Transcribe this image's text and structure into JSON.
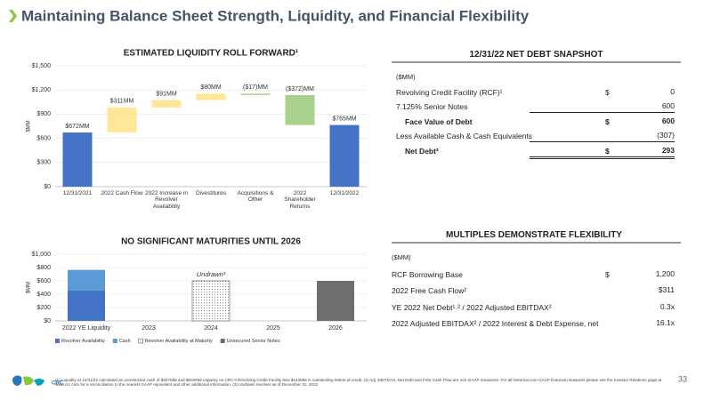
{
  "title": "Maintaining Balance Sheet Strength, Liquidity, and Financial Flexibility",
  "chart_data": [
    {
      "type": "waterfall",
      "title": "ESTIMATED LIQUIDITY ROLL FORWARD¹",
      "y_label": "$MM",
      "categories": [
        "12/31/2021",
        "2022 Cash Flow",
        "2022 Increase in Revolver Availability",
        "Divestitures",
        "Acquisitions & Other",
        "2022 Shareholder Returns",
        "12/31/2022"
      ],
      "measure": [
        "absolute",
        "relative",
        "relative",
        "relative",
        "relative",
        "relative",
        "absolute"
      ],
      "values": [
        672,
        311,
        91,
        80,
        -17,
        -372,
        765
      ],
      "value_labels": [
        "$672MM",
        "$311MM",
        "$91MM",
        "$80MM",
        "($17)MM",
        "($372)MM",
        "$765MM"
      ],
      "total_color": "#4472c4",
      "increase_color": "#ffe699",
      "decrease_color": "#a9d18e",
      "ylim": [
        0,
        1500
      ],
      "yticks": [
        {
          "value": 0,
          "label": "$0"
        },
        {
          "value": 300,
          "label": "$300"
        },
        {
          "value": 600,
          "label": "$600"
        },
        {
          "value": 900,
          "label": "$900"
        },
        {
          "value": 1200,
          "label": "$1,200"
        },
        {
          "value": 1500,
          "label": "$1,500"
        }
      ]
    },
    {
      "type": "stacked_bar",
      "title": "NO SIGNIFICANT MATURITIES UNTIL 2026",
      "y_label": "$MM",
      "categories": [
        "2022 YE Liquidity",
        "2023",
        "2024",
        "2025",
        "2026"
      ],
      "series": [
        {
          "name": "Revolver Availability",
          "color": "#4472c4",
          "values": [
            458,
            null,
            null,
            null,
            null
          ]
        },
        {
          "name": "Cash",
          "color": "#5b9bd5",
          "values": [
            307,
            null,
            null,
            null,
            null
          ]
        },
        {
          "name": "Revolver Availability at Maturity",
          "color": "#ffffff",
          "pattern": "dots",
          "values": [
            null,
            null,
            600,
            null,
            null
          ]
        },
        {
          "name": "Unsecured Senior Notes",
          "color": "#6e6e6e",
          "values": [
            null,
            null,
            null,
            null,
            600
          ]
        }
      ],
      "annotation": "Undrawn³",
      "ylim": [
        0,
        1000
      ],
      "yticks": [
        {
          "value": 0,
          "label": "$0"
        },
        {
          "value": 200,
          "label": "$200"
        },
        {
          "value": 400,
          "label": "$400"
        },
        {
          "value": 600,
          "label": "$600"
        },
        {
          "value": 800,
          "label": "$800"
        },
        {
          "value": 1000,
          "label": "$1,000"
        }
      ],
      "legend": "bottom"
    }
  ],
  "net_debt_table": {
    "title": "12/31/22 NET DEBT SNAPSHOT",
    "unit": "($MM)",
    "rows": [
      {
        "label": "Revolving Credit Facility (RCF)¹",
        "currency": "$",
        "value": "0"
      },
      {
        "label": "7.125% Senior Notes",
        "value": "600",
        "rule": "single"
      },
      {
        "label": "Face Value of Debt",
        "currency": "$",
        "value": "600",
        "bold": true
      },
      {
        "label": "Less Available Cash & Cash Equivalents",
        "value": "(307)",
        "rule": "single"
      },
      {
        "label": "Net Debt²",
        "currency": "$",
        "value": "293",
        "bold": true,
        "rule": "double"
      }
    ]
  },
  "multiples_table": {
    "title": "MULTIPLES DEMONSTRATE FLEXIBILITY",
    "unit": "($MM)",
    "rows": [
      {
        "label": "RCF Borrowing Base",
        "currency": "$",
        "value": "1,200"
      },
      {
        "label": "2022 Free Cash Flow²",
        "value": "$311"
      },
      {
        "label": "YE 2022 Net Debt¹˒² / 2022 Adjusted EBITDAX²",
        "value": "0.3x"
      },
      {
        "label": "2022 Adjusted EBITDAX² / 2022 Interest & Debt Expense, net",
        "value": "16.1x"
      }
    ]
  },
  "footnote": "(1) Liquidity at 12/31/22 calculated as unrestricted cash of $307MM and $602MM capacity on CRC's Revolving Credit Facility less $144MM in outstanding letters of credit. (2) Adj. EBITDAX, Net Debt and Free Cash Flow are non-GAAP measures. For all historical non-GAAP financial measures please see the Investor Relations page at www.crc.com for a reconciliation to the nearest GAAP equivalent and other additional information. (3) Undrawn revolver as of December 31, 2022.",
  "page_number": "33"
}
